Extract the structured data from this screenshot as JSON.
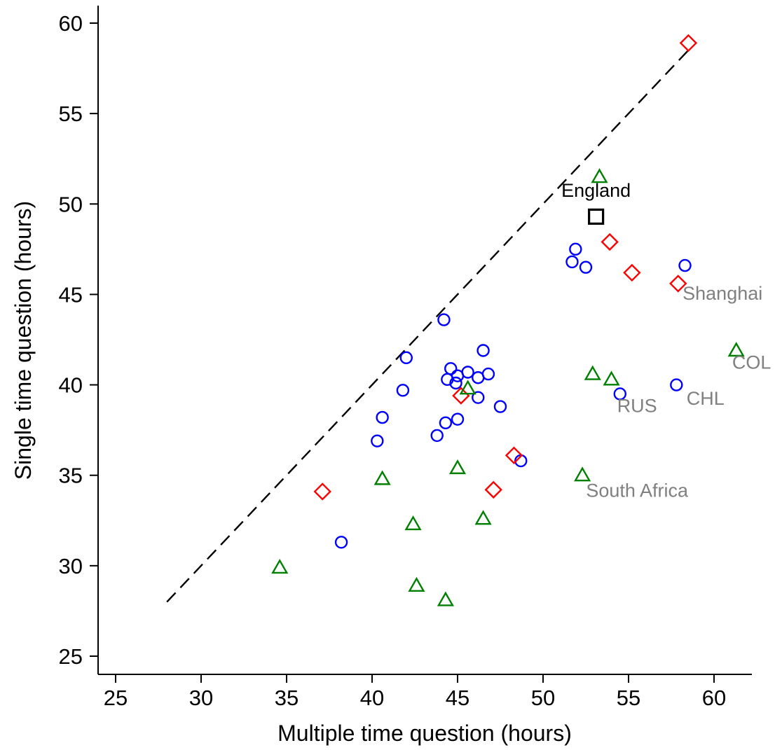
{
  "chart_data": {
    "type": "scatter",
    "title": "",
    "xlabel": "Multiple time question (hours)",
    "ylabel": "Single time question (hours)",
    "xlim": [
      24,
      62.5
    ],
    "ylim": [
      24,
      61
    ],
    "xticks": [
      25,
      30,
      35,
      40,
      45,
      50,
      55,
      60
    ],
    "yticks": [
      25,
      30,
      35,
      40,
      45,
      50,
      55,
      60
    ],
    "grid": false,
    "reference_line": {
      "from": [
        28,
        28
      ],
      "to": [
        58.5,
        58.5
      ],
      "style": "dashed",
      "color": "#000000"
    },
    "series": [
      {
        "marker": "circle",
        "color": "#0000ff",
        "points": [
          [
            38.2,
            31.3
          ],
          [
            40.3,
            36.9
          ],
          [
            40.6,
            38.2
          ],
          [
            41.8,
            39.7
          ],
          [
            42.0,
            41.5
          ],
          [
            43.8,
            37.2
          ],
          [
            44.2,
            43.6
          ],
          [
            44.3,
            37.9
          ],
          [
            44.4,
            40.3
          ],
          [
            44.6,
            40.9
          ],
          [
            44.9,
            40.1
          ],
          [
            45.0,
            38.1
          ],
          [
            45.0,
            40.5
          ],
          [
            45.6,
            40.7
          ],
          [
            46.2,
            40.4
          ],
          [
            46.2,
            39.3
          ],
          [
            46.5,
            41.9
          ],
          [
            46.8,
            40.6
          ],
          [
            47.5,
            38.8
          ],
          [
            48.7,
            35.8
          ],
          [
            51.7,
            46.8
          ],
          [
            51.9,
            47.5
          ],
          [
            52.5,
            46.5
          ],
          [
            54.5,
            39.5
          ],
          [
            57.8,
            40.0
          ],
          [
            58.3,
            46.6
          ]
        ]
      },
      {
        "marker": "diamond",
        "color": "#ff0000",
        "points": [
          [
            37.1,
            34.1
          ],
          [
            45.2,
            39.4
          ],
          [
            47.1,
            34.2
          ],
          [
            48.3,
            36.1
          ],
          [
            53.9,
            47.9
          ],
          [
            55.2,
            46.2
          ],
          [
            57.9,
            45.6
          ],
          [
            58.5,
            58.9
          ]
        ]
      },
      {
        "marker": "triangle",
        "color": "#008000",
        "points": [
          [
            34.6,
            29.9
          ],
          [
            40.6,
            34.8
          ],
          [
            42.4,
            32.3
          ],
          [
            42.6,
            28.9
          ],
          [
            44.3,
            28.1
          ],
          [
            45.0,
            35.4
          ],
          [
            45.6,
            39.8
          ],
          [
            46.5,
            32.6
          ],
          [
            52.3,
            35.0
          ],
          [
            52.9,
            40.6
          ],
          [
            53.3,
            51.5
          ],
          [
            54.0,
            40.3
          ],
          [
            61.3,
            41.9
          ]
        ]
      },
      {
        "marker": "square",
        "color": "#000000",
        "points": [
          [
            53.1,
            49.3
          ]
        ]
      }
    ],
    "annotations": [
      {
        "text": "England",
        "x": 53.1,
        "y": 50.4,
        "color": "#000000"
      },
      {
        "text": "Shanghai",
        "x": 60.5,
        "y": 44.7,
        "color": "#808080"
      },
      {
        "text": "COL",
        "x": 62.2,
        "y": 40.9,
        "color": "#808080"
      },
      {
        "text": "CHL",
        "x": 59.5,
        "y": 38.9,
        "color": "#808080"
      },
      {
        "text": "RUS",
        "x": 55.5,
        "y": 38.5,
        "color": "#808080"
      },
      {
        "text": "South Africa",
        "x": 55.5,
        "y": 33.8,
        "color": "#808080"
      }
    ]
  }
}
